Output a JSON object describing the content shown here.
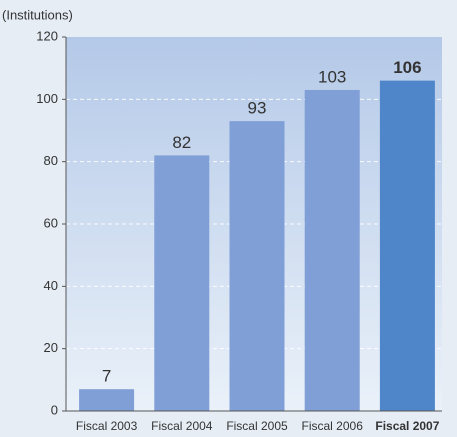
{
  "chart_data": {
    "type": "bar",
    "y_label": "(Institutions)",
    "categories": [
      "Fiscal 2003",
      "Fiscal 2004",
      "Fiscal 2005",
      "Fiscal 2006",
      "Fiscal 2007"
    ],
    "values": [
      7,
      82,
      93,
      103,
      106
    ],
    "color": "#7f9fd6",
    "highlight_color": "#4f86c9",
    "highlight": [
      false,
      false,
      false,
      false,
      true
    ],
    "ylim": [
      0,
      120
    ],
    "yticks": [
      0,
      20,
      40,
      60,
      80,
      100,
      120
    ],
    "grid": true
  }
}
